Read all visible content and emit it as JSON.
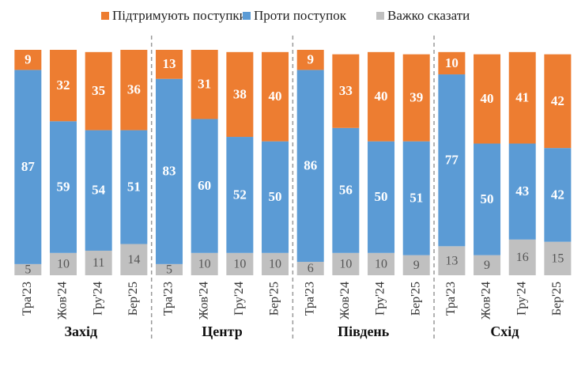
{
  "chart_data": {
    "type": "stacked-bar",
    "categories": [
      "Тра'23",
      "Жов'24",
      "Гру'24",
      "Бер'25",
      "Тра'23",
      "Жов'24",
      "Гру'24",
      "Бер'25",
      "Тра'23",
      "Жов'24",
      "Гру'24",
      "Бер'25",
      "Тра'23",
      "Жов'24",
      "Гру'24",
      "Бер'25"
    ],
    "groups": [
      "Захід",
      "Центр",
      "Південь",
      "Схід"
    ],
    "ylim": [
      0,
      101
    ],
    "series": [
      {
        "name": "Важко сказати",
        "color": "#c0c0c0",
        "values": [
          5,
          10,
          11,
          14,
          5,
          10,
          10,
          10,
          6,
          10,
          10,
          9,
          13,
          9,
          16,
          15
        ]
      },
      {
        "name": "Проти поступок",
        "color": "#5b9bd5",
        "values": [
          87,
          59,
          54,
          51,
          83,
          60,
          52,
          50,
          86,
          56,
          50,
          51,
          77,
          50,
          43,
          42
        ]
      },
      {
        "name": "Підтримують поступки",
        "color": "#ed7d31",
        "values": [
          9,
          32,
          35,
          36,
          13,
          31,
          38,
          40,
          9,
          33,
          40,
          39,
          10,
          40,
          41,
          42
        ]
      }
    ]
  }
}
